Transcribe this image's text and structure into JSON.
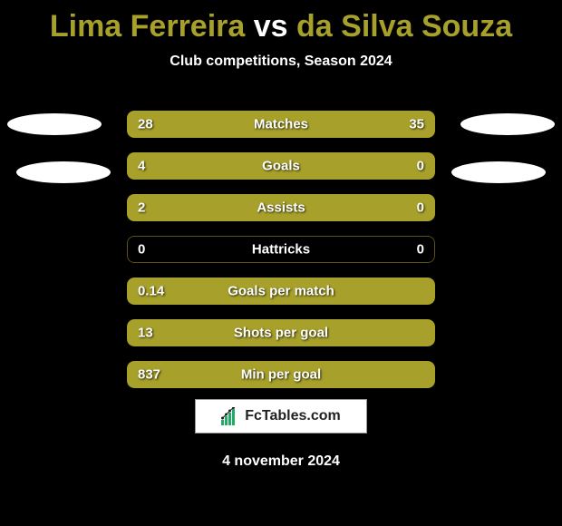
{
  "title_parts": {
    "player1": "Lima Ferreira",
    "vs": " vs ",
    "player2": "da Silva Souza"
  },
  "colors": {
    "player1": "#a7a02a",
    "player2": "#a7a02a",
    "title_player1": "#a7a02a",
    "title_vs": "#ffffff",
    "title_player2": "#a7a02a",
    "bar_border": "rgba(150,140,40,0.6)",
    "single_bar_fill": "#a7a02a",
    "background": "#000000",
    "text": "#ffffff"
  },
  "subtitle": "Club competitions, Season 2024",
  "stats_split": [
    {
      "label": "Matches",
      "left_val": "28",
      "right_val": "35",
      "left_pct": 44,
      "right_pct": 56
    },
    {
      "label": "Goals",
      "left_val": "4",
      "right_val": "0",
      "left_pct": 78,
      "right_pct": 22
    },
    {
      "label": "Assists",
      "left_val": "2",
      "right_val": "0",
      "left_pct": 78,
      "right_pct": 22
    },
    {
      "label": "Hattricks",
      "left_val": "0",
      "right_val": "0",
      "left_pct": 0,
      "right_pct": 0
    }
  ],
  "stats_single": [
    {
      "label": "Goals per match",
      "val": "0.14"
    },
    {
      "label": "Shots per goal",
      "val": "13"
    },
    {
      "label": "Min per goal",
      "val": "837"
    }
  ],
  "footer": {
    "site": "FcTables.com",
    "date": "4 november 2024"
  }
}
